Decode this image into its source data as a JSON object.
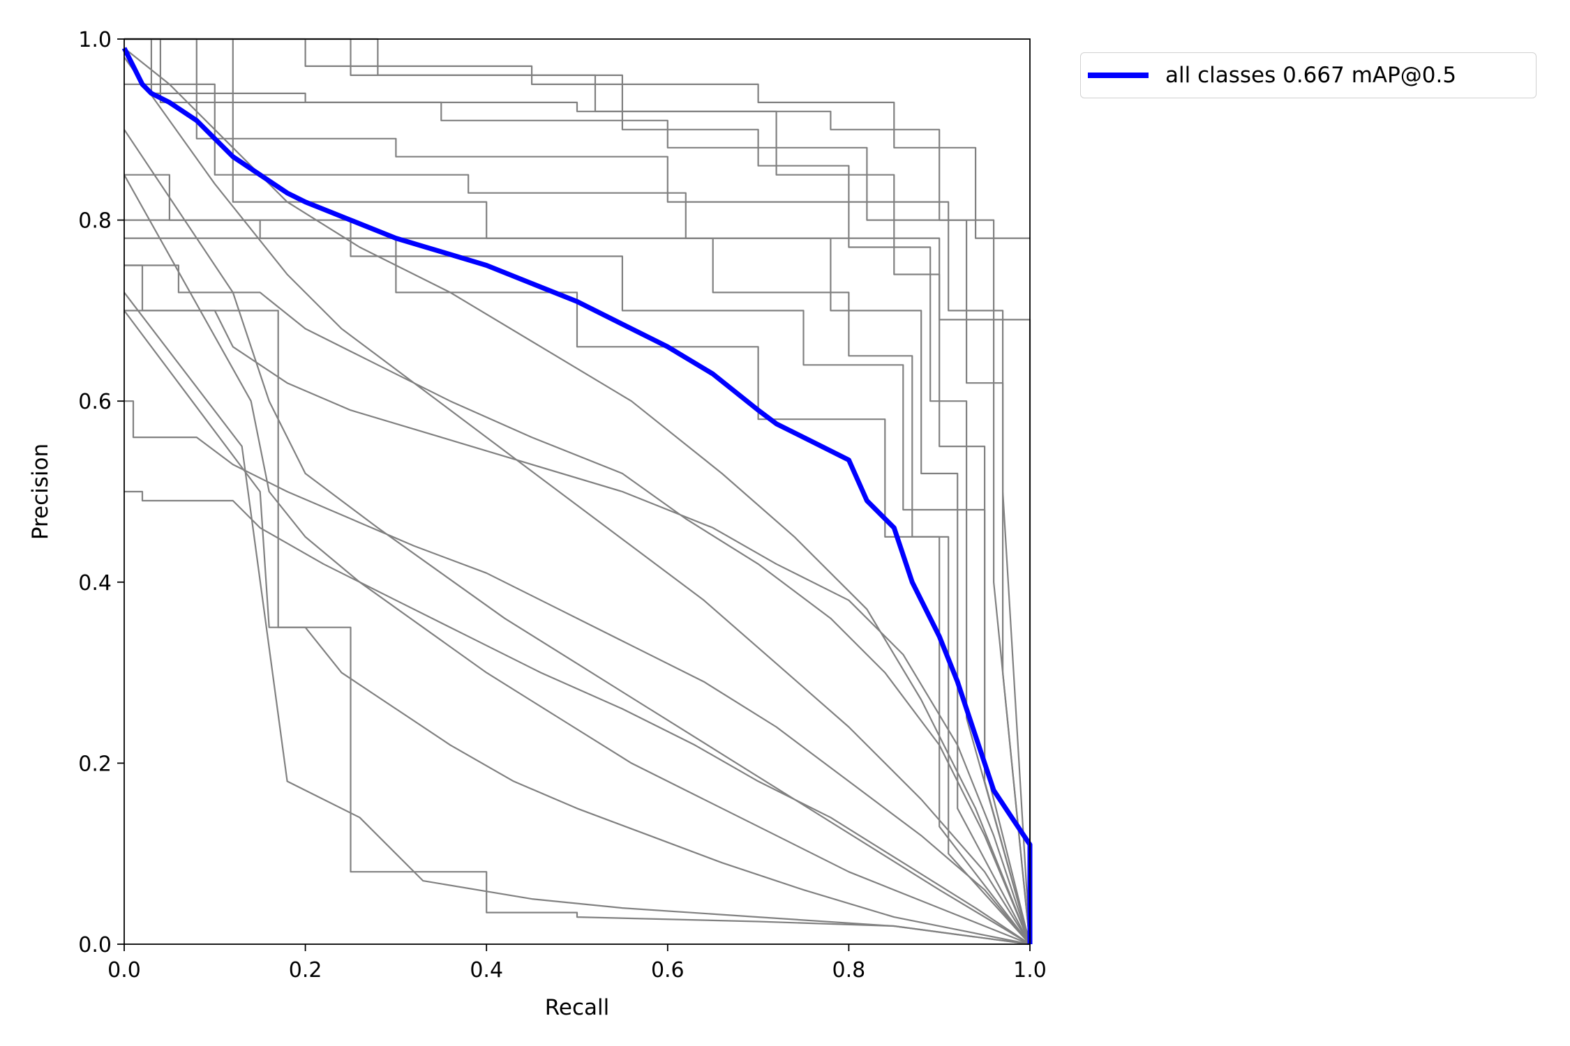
{
  "chart_data": {
    "type": "line",
    "xlabel": "Recall",
    "ylabel": "Precision",
    "xlim": [
      0,
      1
    ],
    "ylim": [
      0,
      1
    ],
    "x_ticks": [
      "0.0",
      "0.2",
      "0.4",
      "0.6",
      "0.8",
      "1.0"
    ],
    "y_ticks": [
      "0.0",
      "0.2",
      "0.4",
      "0.6",
      "0.8",
      "1.0"
    ],
    "grid": false,
    "legend_position": "outside-top-right",
    "colors": {
      "mean": "#0000ff",
      "per_class": "#808080",
      "legend_border": "#d0d0d0"
    },
    "legend": [
      {
        "label": "all classes 0.667 mAP@0.5",
        "color": "#0000ff"
      }
    ],
    "series": [
      {
        "name": "all classes 0.667 mAP@0.5",
        "color": "#0000ff",
        "x": [
          0,
          0.01,
          0.02,
          0.03,
          0.05,
          0.08,
          0.1,
          0.12,
          0.15,
          0.18,
          0.2,
          0.25,
          0.3,
          0.35,
          0.4,
          0.45,
          0.5,
          0.55,
          0.6,
          0.65,
          0.7,
          0.72,
          0.75,
          0.8,
          0.82,
          0.85,
          0.87,
          0.9,
          0.92,
          0.94,
          0.96,
          0.98,
          1.0,
          1.0
        ],
        "y": [
          0.99,
          0.97,
          0.95,
          0.94,
          0.93,
          0.91,
          0.89,
          0.87,
          0.85,
          0.83,
          0.82,
          0.8,
          0.78,
          0.765,
          0.75,
          0.73,
          0.71,
          0.685,
          0.66,
          0.63,
          0.59,
          0.575,
          0.56,
          0.535,
          0.49,
          0.46,
          0.4,
          0.34,
          0.29,
          0.23,
          0.17,
          0.14,
          0.11,
          0.0
        ]
      },
      {
        "color": "#808080",
        "x": [
          0,
          0.03,
          0.03,
          0.2,
          0.2,
          0.5,
          0.5,
          0.78,
          0.78,
          0.9,
          0.9,
          0.96,
          0.96,
          1.0
        ],
        "y": [
          1.0,
          1.0,
          0.94,
          0.94,
          0.93,
          0.93,
          0.92,
          0.92,
          0.9,
          0.9,
          0.8,
          0.8,
          0.4,
          0.0
        ]
      },
      {
        "color": "#808080",
        "x": [
          0,
          0.2,
          0.2,
          0.45,
          0.45,
          0.7,
          0.7,
          0.85,
          0.85,
          0.94,
          0.94,
          0.98,
          1.0
        ],
        "y": [
          1.0,
          1.0,
          0.97,
          0.97,
          0.95,
          0.95,
          0.93,
          0.93,
          0.88,
          0.88,
          0.78,
          0.78,
          0.78
        ]
      },
      {
        "color": "#808080",
        "x": [
          0,
          0.04,
          0.04,
          0.35,
          0.35,
          0.6,
          0.6,
          0.82,
          0.82,
          0.93,
          0.93,
          0.97,
          0.97,
          1.0
        ],
        "y": [
          1.0,
          1.0,
          0.93,
          0.93,
          0.91,
          0.91,
          0.88,
          0.88,
          0.8,
          0.8,
          0.62,
          0.62,
          0.3,
          0.0
        ]
      },
      {
        "color": "#808080",
        "x": [
          0,
          0.25,
          0.25,
          0.52,
          0.52,
          0.72,
          0.72,
          0.85,
          0.85,
          0.9,
          0.9,
          0.95,
          0.95,
          1.0
        ],
        "y": [
          1.0,
          1.0,
          0.96,
          0.96,
          0.92,
          0.92,
          0.85,
          0.85,
          0.74,
          0.74,
          0.55,
          0.55,
          0.2,
          0.0
        ]
      },
      {
        "color": "#808080",
        "x": [
          0,
          0.08,
          0.08,
          0.3,
          0.3,
          0.6,
          0.6,
          0.8,
          0.8,
          0.89,
          0.89,
          0.93,
          0.93,
          1.0
        ],
        "y": [
          1.0,
          1.0,
          0.89,
          0.89,
          0.87,
          0.87,
          0.82,
          0.82,
          0.77,
          0.77,
          0.6,
          0.6,
          0.25,
          0.0
        ]
      },
      {
        "color": "#808080",
        "x": [
          0,
          0.1,
          0.1,
          0.38,
          0.38,
          0.62,
          0.62,
          0.78,
          0.78,
          0.88,
          0.88,
          0.92,
          0.92,
          1.0
        ],
        "y": [
          0.95,
          0.95,
          0.85,
          0.85,
          0.83,
          0.83,
          0.78,
          0.78,
          0.7,
          0.7,
          0.52,
          0.52,
          0.15,
          0.0
        ]
      },
      {
        "color": "#808080",
        "x": [
          0,
          0.12,
          0.12,
          0.4,
          0.4,
          0.65,
          0.65,
          0.8,
          0.8,
          0.87,
          0.87,
          0.91,
          0.91,
          1.0
        ],
        "y": [
          1.0,
          1.0,
          0.82,
          0.82,
          0.78,
          0.78,
          0.72,
          0.72,
          0.65,
          0.65,
          0.45,
          0.45,
          0.1,
          0.0
        ]
      },
      {
        "color": "#808080",
        "x": [
          0,
          0.05,
          0.05,
          0.25,
          0.25,
          0.55,
          0.55,
          0.75,
          0.75,
          0.86,
          0.86,
          0.95,
          0.95,
          1.0
        ],
        "y": [
          0.85,
          0.85,
          0.8,
          0.8,
          0.76,
          0.76,
          0.7,
          0.7,
          0.64,
          0.64,
          0.48,
          0.48,
          0.18,
          0.0
        ]
      },
      {
        "color": "#808080",
        "x": [
          0,
          0.15,
          0.15,
          0.3,
          0.3,
          0.5,
          0.5,
          0.7,
          0.7,
          0.84,
          0.84,
          0.9,
          0.9,
          1.0
        ],
        "y": [
          0.8,
          0.8,
          0.78,
          0.78,
          0.72,
          0.72,
          0.66,
          0.66,
          0.58,
          0.58,
          0.45,
          0.45,
          0.13,
          0.0
        ]
      },
      {
        "color": "#808080",
        "x": [
          0,
          0.02,
          0.02,
          0.1,
          0.12,
          0.18,
          0.25,
          0.35,
          0.45,
          0.55,
          0.65,
          0.72,
          0.8,
          0.86,
          0.92,
          0.96,
          1.0
        ],
        "y": [
          0.75,
          0.75,
          0.7,
          0.7,
          0.66,
          0.62,
          0.59,
          0.56,
          0.53,
          0.5,
          0.46,
          0.42,
          0.38,
          0.32,
          0.22,
          0.12,
          0.0
        ]
      },
      {
        "color": "#808080",
        "x": [
          0,
          0.06,
          0.06,
          0.15,
          0.2,
          0.28,
          0.36,
          0.45,
          0.55,
          0.62,
          0.7,
          0.78,
          0.84,
          0.9,
          0.95,
          1.0
        ],
        "y": [
          0.75,
          0.75,
          0.72,
          0.72,
          0.68,
          0.64,
          0.6,
          0.56,
          0.52,
          0.47,
          0.42,
          0.36,
          0.3,
          0.22,
          0.12,
          0.0
        ]
      },
      {
        "color": "#808080",
        "x": [
          0,
          0.01,
          0.01,
          0.08,
          0.12,
          0.18,
          0.25,
          0.32,
          0.4,
          0.48,
          0.56,
          0.64,
          0.72,
          0.8,
          0.88,
          0.95,
          1.0
        ],
        "y": [
          0.6,
          0.6,
          0.56,
          0.56,
          0.53,
          0.5,
          0.47,
          0.44,
          0.41,
          0.37,
          0.33,
          0.29,
          0.24,
          0.18,
          0.12,
          0.06,
          0.0
        ]
      },
      {
        "color": "#808080",
        "x": [
          0,
          0.02,
          0.02,
          0.12,
          0.15,
          0.22,
          0.3,
          0.38,
          0.46,
          0.55,
          0.63,
          0.7,
          0.78,
          0.86,
          0.94,
          1.0
        ],
        "y": [
          0.5,
          0.5,
          0.49,
          0.49,
          0.46,
          0.42,
          0.38,
          0.34,
          0.3,
          0.26,
          0.22,
          0.18,
          0.14,
          0.09,
          0.04,
          0.0
        ]
      },
      {
        "color": "#808080",
        "x": [
          0,
          0.12,
          0.16,
          0.2,
          0.28,
          0.35,
          0.42,
          0.5,
          0.58,
          0.66,
          0.74,
          0.82,
          0.9,
          1.0
        ],
        "y": [
          0.9,
          0.72,
          0.6,
          0.52,
          0.46,
          0.41,
          0.36,
          0.31,
          0.26,
          0.21,
          0.16,
          0.11,
          0.06,
          0.0
        ]
      },
      {
        "color": "#808080",
        "x": [
          0,
          0.14,
          0.16,
          0.2,
          0.26,
          0.33,
          0.4,
          0.48,
          0.56,
          0.64,
          0.72,
          0.8,
          0.9,
          1.0
        ],
        "y": [
          0.85,
          0.6,
          0.5,
          0.45,
          0.4,
          0.35,
          0.3,
          0.25,
          0.2,
          0.16,
          0.12,
          0.08,
          0.04,
          0.0
        ]
      },
      {
        "color": "#808080",
        "x": [
          0,
          0.15,
          0.16,
          0.2,
          0.24,
          0.3,
          0.36,
          0.43,
          0.5,
          0.58,
          0.66,
          0.75,
          0.85,
          1.0
        ],
        "y": [
          0.7,
          0.5,
          0.35,
          0.35,
          0.3,
          0.26,
          0.22,
          0.18,
          0.15,
          0.12,
          0.09,
          0.06,
          0.03,
          0.0
        ]
      },
      {
        "color": "#808080",
        "x": [
          0,
          0.13,
          0.18,
          0.18,
          0.26,
          0.26,
          0.33,
          0.33,
          0.45,
          0.55,
          0.7,
          0.85,
          1.0
        ],
        "y": [
          0.72,
          0.55,
          0.18,
          0.18,
          0.14,
          0.14,
          0.07,
          0.07,
          0.05,
          0.04,
          0.03,
          0.02,
          0.0
        ]
      },
      {
        "color": "#808080",
        "x": [
          0,
          0.17,
          0.17,
          0.25,
          0.25,
          0.4,
          0.4,
          0.5,
          0.5,
          0.7,
          0.85,
          1.0
        ],
        "y": [
          0.7,
          0.7,
          0.35,
          0.35,
          0.08,
          0.08,
          0.035,
          0.035,
          0.03,
          0.025,
          0.02,
          0.0
        ]
      },
      {
        "color": "#808080",
        "x": [
          0,
          0.1,
          0.18,
          0.24,
          0.32,
          0.4,
          0.48,
          0.56,
          0.64,
          0.72,
          0.8,
          0.88,
          0.95,
          1.0
        ],
        "y": [
          0.98,
          0.84,
          0.74,
          0.68,
          0.62,
          0.56,
          0.5,
          0.44,
          0.38,
          0.31,
          0.24,
          0.16,
          0.08,
          0.0
        ]
      },
      {
        "color": "#808080",
        "x": [
          0,
          0.28,
          0.28,
          0.55,
          0.55,
          0.7,
          0.7,
          0.8,
          0.8,
          0.91,
          0.91,
          0.97,
          0.97,
          1.0
        ],
        "y": [
          1.0,
          1.0,
          0.96,
          0.96,
          0.9,
          0.9,
          0.86,
          0.86,
          0.82,
          0.82,
          0.7,
          0.7,
          0.5,
          0.0
        ]
      },
      {
        "color": "#808080",
        "x": [
          0,
          0.9,
          0.9,
          1.0,
          1.0
        ],
        "y": [
          0.78,
          0.78,
          0.69,
          0.69,
          0.0
        ]
      },
      {
        "color": "#808080",
        "x": [
          0,
          0.05,
          0.1,
          0.18,
          0.26,
          0.36,
          0.46,
          0.56,
          0.66,
          0.74,
          0.82,
          0.88,
          0.94,
          1.0
        ],
        "y": [
          0.99,
          0.95,
          0.9,
          0.82,
          0.77,
          0.72,
          0.66,
          0.6,
          0.52,
          0.45,
          0.37,
          0.27,
          0.15,
          0.0
        ]
      }
    ]
  }
}
